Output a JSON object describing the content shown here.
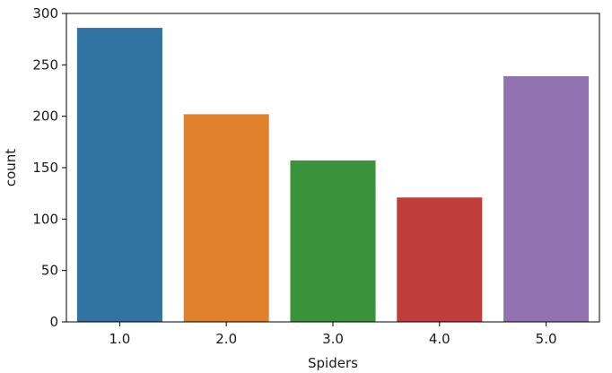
{
  "chart_data": {
    "type": "bar",
    "xlabel": "Spiders",
    "ylabel": "count",
    "categories": [
      "1.0",
      "2.0",
      "3.0",
      "4.0",
      "5.0"
    ],
    "values": [
      286,
      202,
      157,
      121,
      239
    ],
    "colors": [
      "#3274a1",
      "#e1812c",
      "#3a923a",
      "#c03d3e",
      "#9372b2"
    ],
    "ylim": [
      0,
      300
    ],
    "yticks": [
      0,
      50,
      100,
      150,
      200,
      250,
      300
    ],
    "grid": false,
    "legend": "none"
  }
}
